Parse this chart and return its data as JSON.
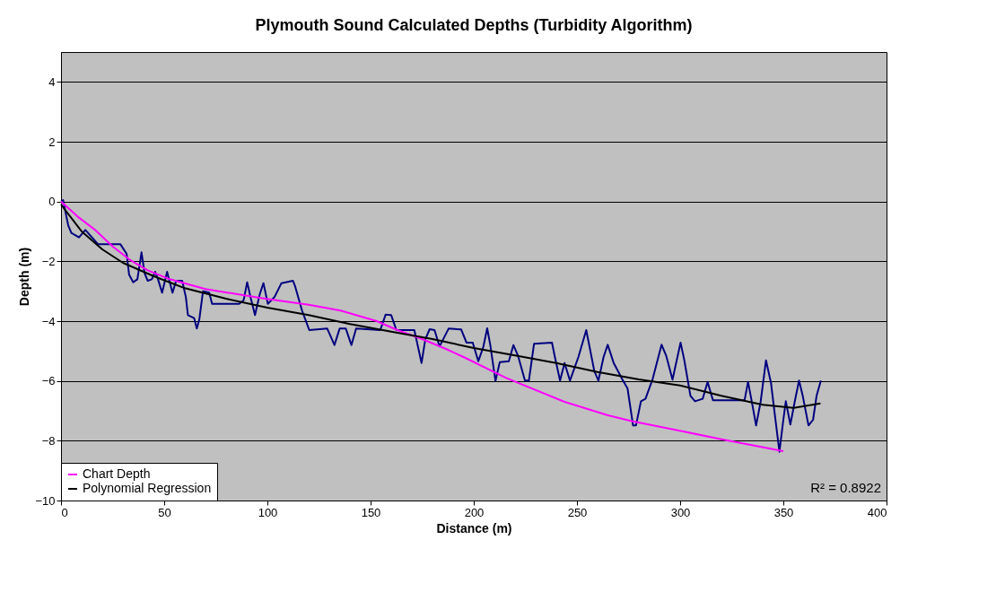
{
  "chart_data": {
    "type": "line",
    "title": "Plymouth Sound Calculated Depths (Turbidity Algorithm)",
    "xlabel": "Distance (m)",
    "ylabel": "Depth (m)",
    "xlim": [
      0,
      400
    ],
    "xticks": [
      0,
      50,
      100,
      150,
      200,
      250,
      300,
      350,
      400
    ],
    "ylim": [
      -10,
      5
    ],
    "yticks": [
      -10,
      -8,
      -6,
      -4,
      -2,
      0,
      2,
      4
    ],
    "grid": "y",
    "legend": "bottom left",
    "marker": "none",
    "line_style": "solid",
    "annotations": [
      "R² = 0.8922"
    ],
    "series": [
      {
        "color": "#000080",
        "x": [
          0,
          1,
          3.5,
          5,
          8.7,
          11.8,
          18,
          28.8,
          31.8,
          33,
          35,
          37,
          39,
          40.5,
          42,
          44,
          45.6,
          47,
          49,
          51.4,
          54,
          55.8,
          58.7,
          60.5,
          61.5,
          64.5,
          65.8,
          67,
          68.8,
          71.8,
          73.2,
          86.3,
          88.5,
          90.2,
          92,
          94,
          96.3,
          98.1,
          100.2,
          103.4,
          106.8,
          112.4,
          113.5,
          116.8,
          120.3,
          129,
          132.5,
          135,
          138,
          140.7,
          143,
          154.7,
          157.3,
          160,
          162.5,
          171.2,
          174.7,
          176.5,
          178.6,
          181,
          183.4,
          187.8,
          193.9,
          196.5,
          199.5,
          202.2,
          204.6,
          206.5,
          208,
          210.5,
          212.6,
          217,
          219.2,
          221.4,
          224.8,
          226.7,
          229.2,
          237.9,
          239.3,
          241.8,
          244,
          246.6,
          250.7,
          254.5,
          258.4,
          260.4,
          262.9,
          264.9,
          267.8,
          272.3,
          274.5,
          277.2,
          278.6,
          281,
          283.2,
          286.7,
          291,
          293.2,
          296.3,
          300.2,
          302,
          305,
          307.2,
          310.9,
          313.3,
          315.9,
          331.2,
          332.9,
          335,
          336.8,
          339,
          341.6,
          344,
          346,
          348.1,
          350,
          351.2,
          353.4,
          355.5,
          357.6,
          359.4,
          362.2,
          364.4,
          366.1,
          368.2
        ],
        "values": [
          0,
          0.05,
          -0.8,
          -1.05,
          -1.2,
          -0.95,
          -1.43,
          -1.43,
          -1.75,
          -2.45,
          -2.7,
          -2.6,
          -1.7,
          -2.4,
          -2.65,
          -2.6,
          -2.35,
          -2.6,
          -3.05,
          -2.35,
          -3.05,
          -2.65,
          -2.65,
          -3.2,
          -3.8,
          -3.9,
          -4.25,
          -3.95,
          -3.0,
          -3.05,
          -3.42,
          -3.42,
          -3.3,
          -2.7,
          -3.25,
          -3.8,
          -3.1,
          -2.73,
          -3.42,
          -3.2,
          -2.73,
          -2.65,
          -2.85,
          -3.65,
          -4.3,
          -4.25,
          -4.8,
          -4.25,
          -4.25,
          -4.8,
          -4.25,
          -4.3,
          -3.78,
          -3.8,
          -4.3,
          -4.3,
          -5.4,
          -4.62,
          -4.27,
          -4.3,
          -4.85,
          -4.25,
          -4.28,
          -4.72,
          -4.72,
          -5.34,
          -4.87,
          -4.24,
          -4.8,
          -6.0,
          -5.37,
          -5.34,
          -4.8,
          -5.15,
          -5.99,
          -5.99,
          -4.76,
          -4.72,
          -5.2,
          -5.99,
          -5.4,
          -5.99,
          -5.2,
          -4.3,
          -5.67,
          -5.99,
          -5.2,
          -4.79,
          -5.4,
          -5.99,
          -6.25,
          -7.49,
          -7.49,
          -6.68,
          -6.6,
          -5.93,
          -4.79,
          -5.15,
          -5.96,
          -4.72,
          -5.3,
          -6.5,
          -6.68,
          -6.6,
          -6.03,
          -6.65,
          -6.65,
          -6.03,
          -6.8,
          -7.49,
          -6.7,
          -5.31,
          -6.06,
          -7.2,
          -8.37,
          -7.3,
          -6.68,
          -7.46,
          -6.7,
          -5.99,
          -6.5,
          -7.49,
          -7.3,
          -6.5,
          -5.99
        ]
      },
      {
        "name": "Chart Depth",
        "color": "#ff00ff",
        "x": [
          0,
          8,
          16.5,
          25,
          34,
          42,
          52.7,
          70,
          99,
          120,
          135.5,
          153,
          163,
          175,
          186.5,
          195,
          215.7,
          244,
          265,
          277,
          295,
          320,
          350
        ],
        "values": [
          0,
          -0.5,
          -0.95,
          -1.5,
          -1.98,
          -2.3,
          -2.6,
          -2.93,
          -3.25,
          -3.45,
          -3.65,
          -4.0,
          -4.3,
          -4.6,
          -4.93,
          -5.2,
          -5.9,
          -6.7,
          -7.15,
          -7.35,
          -7.6,
          -7.95,
          -8.35
        ]
      },
      {
        "name": "Polynomial Regression",
        "color": "#000000",
        "x": [
          0,
          10,
          20,
          30,
          45,
          60,
          80,
          100,
          120,
          140,
          160,
          180,
          200,
          220,
          240,
          260,
          280,
          300,
          320,
          340,
          355,
          368
        ],
        "values": [
          -0.1,
          -1.0,
          -1.6,
          -2.05,
          -2.5,
          -2.9,
          -3.25,
          -3.55,
          -3.8,
          -4.1,
          -4.35,
          -4.6,
          -4.9,
          -5.15,
          -5.4,
          -5.7,
          -5.95,
          -6.15,
          -6.5,
          -6.8,
          -6.9,
          -6.75
        ]
      }
    ]
  }
}
